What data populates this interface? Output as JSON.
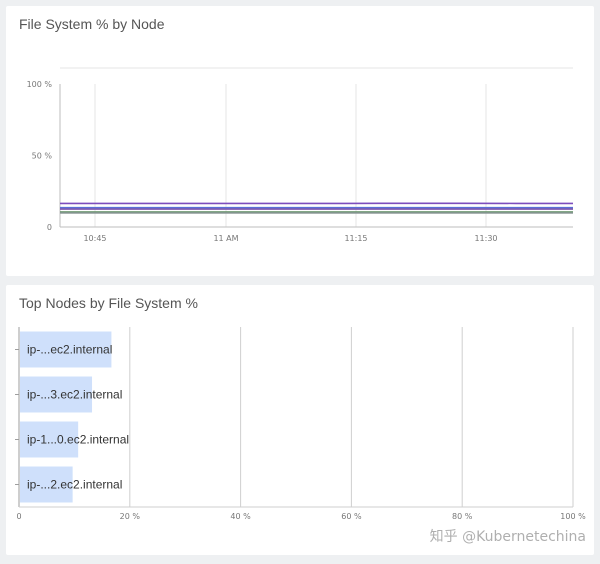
{
  "panels": {
    "fs_title": "File System % by Node",
    "top_title": "Top Nodes by File System %"
  },
  "watermark": "知乎 @Kubernetechina",
  "chart_data": [
    {
      "type": "line",
      "title": "File System % by Node",
      "x_ticks": [
        "10:45",
        "11 AM",
        "11:15",
        "11:30"
      ],
      "y_ticks": [
        "0",
        "50 %",
        "100 %"
      ],
      "ylim": [
        0,
        100
      ],
      "grid": true,
      "series": [
        {
          "color": "#7c4dbd",
          "values": [
            16.5,
            16.5,
            16.5,
            16.5,
            16.5,
            16.5,
            16.6,
            16.6,
            16.5,
            16.5
          ]
        },
        {
          "color": "#5b6fd6",
          "values": [
            13.5,
            13.5,
            13.5,
            13.5,
            13.5,
            13.5,
            13.5,
            13.5,
            13.5,
            13.5
          ]
        },
        {
          "color": "#7e5ab0",
          "values": [
            12.5,
            12.5,
            12.5,
            12.5,
            12.5,
            12.5,
            12.5,
            12.5,
            12.5,
            12.5
          ]
        },
        {
          "color": "#5a8a5e",
          "values": [
            10.5,
            10.5,
            10.5,
            10.5,
            10.5,
            10.5,
            10.5,
            10.5,
            10.5,
            10.5
          ]
        },
        {
          "color": "#8d9a99",
          "values": [
            9.8,
            9.8,
            9.8,
            9.8,
            9.8,
            9.8,
            9.8,
            9.8,
            9.8,
            9.8
          ]
        }
      ]
    },
    {
      "type": "bar",
      "orientation": "horizontal",
      "title": "Top Nodes by File System %",
      "categories": [
        "ip-...ec2.internal",
        "ip-...3.ec2.internal",
        "ip-1...0.ec2.internal",
        "ip-...2.ec2.internal"
      ],
      "values": [
        16.5,
        13,
        10.5,
        9.5
      ],
      "xlim": [
        0,
        100
      ],
      "x_ticks": [
        "0",
        "20 %",
        "40 %",
        "60 %",
        "80 %",
        "100 %"
      ],
      "grid": true,
      "bar_color": "#cfe0fb"
    }
  ]
}
